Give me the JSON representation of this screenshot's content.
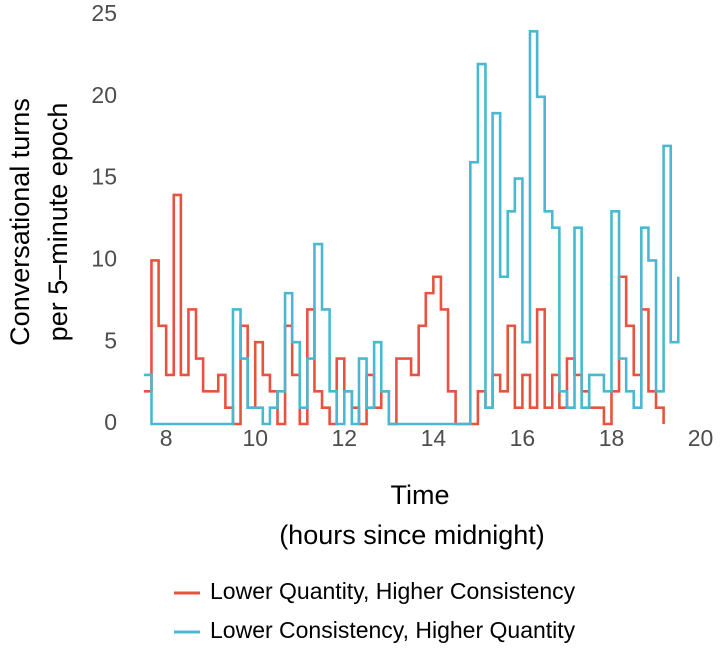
{
  "chart_data": {
    "type": "line",
    "step": "post",
    "ylabel": [
      "Conversational turns",
      "per 5–minute epoch"
    ],
    "xlabel": [
      "Time",
      "(hours since midnight)"
    ],
    "x": [
      7.5,
      7.67,
      7.83,
      8,
      8.17,
      8.33,
      8.5,
      8.67,
      8.83,
      9,
      9.17,
      9.33,
      9.5,
      9.67,
      9.83,
      10,
      10.17,
      10.33,
      10.5,
      10.67,
      10.83,
      11,
      11.17,
      11.33,
      11.5,
      11.67,
      11.83,
      12,
      12.17,
      12.33,
      12.5,
      12.67,
      12.83,
      13,
      13.17,
      13.33,
      13.5,
      13.67,
      13.83,
      14,
      14.17,
      14.33,
      14.5,
      14.67,
      14.83,
      15,
      15.17,
      15.33,
      15.5,
      15.67,
      15.83,
      16,
      16.17,
      16.33,
      16.5,
      16.67,
      16.83,
      17,
      17.17,
      17.33,
      17.5,
      17.67,
      17.83,
      18,
      18.17,
      18.33,
      18.5,
      18.67,
      18.83,
      19,
      19.17,
      19.33,
      19.5
    ],
    "series": [
      {
        "name": "Lower Quantity, Higher Consistency",
        "color": "#e8533f",
        "values": [
          2,
          10,
          6,
          3,
          14,
          3,
          7,
          4,
          2,
          2,
          3,
          1,
          0,
          6,
          1,
          5,
          3,
          2,
          0,
          6,
          3,
          0,
          7,
          2,
          1,
          0,
          4,
          2,
          1,
          0,
          3,
          1,
          2,
          0,
          4,
          4,
          3,
          6,
          8,
          9,
          7,
          2,
          0,
          0,
          0,
          2,
          1,
          3,
          2,
          6,
          1,
          3,
          1,
          7,
          1,
          3,
          1,
          4,
          3,
          2,
          1,
          1,
          0,
          2,
          9,
          6,
          3,
          7,
          2,
          1,
          0,
          null,
          null
        ]
      },
      {
        "name": "Lower Consistency, Higher Quantity",
        "color": "#4ab8d0",
        "values": [
          3,
          0,
          0,
          0,
          0,
          0,
          0,
          0,
          0,
          0,
          0,
          0,
          7,
          4,
          1,
          1,
          0,
          1,
          2,
          8,
          5,
          1,
          4,
          11,
          7,
          2,
          0,
          2,
          0,
          4,
          1,
          5,
          2,
          0,
          0,
          0,
          0,
          0,
          0,
          0,
          0,
          0,
          0,
          0,
          16,
          22,
          1,
          19,
          9,
          13,
          15,
          5,
          24,
          20,
          13,
          12,
          2,
          1,
          12,
          1,
          3,
          3,
          2,
          13,
          4,
          2,
          1,
          12,
          10,
          2,
          17,
          5,
          9
        ]
      }
    ],
    "xlim": [
      7.3,
      20.1
    ],
    "xticks": [
      8,
      10,
      12,
      14,
      16,
      18,
      20
    ],
    "ylim": [
      0,
      25
    ],
    "yticks": [
      0,
      5,
      10,
      15,
      20,
      25
    ],
    "grid": false,
    "legend": "bottom"
  }
}
